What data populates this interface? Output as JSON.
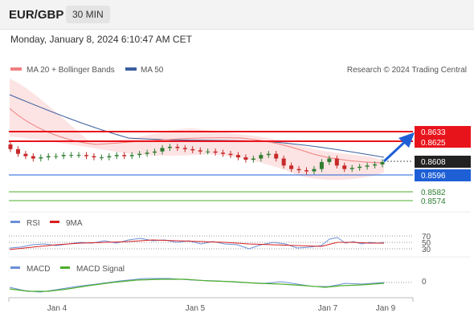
{
  "header": {
    "pair": "EUR/GBP",
    "timeframe": "30 MIN"
  },
  "datetime": "Monday, January 8, 2024 6:10:47 AM CET",
  "legend": {
    "ma20_bb": "MA 20 + Bollinger Bands",
    "ma50": "MA 50",
    "credit": "Research © 2024 Trading Central"
  },
  "colors": {
    "bullish": "#2e7d32",
    "bearish": "#c62828",
    "resistance": "#e8141c",
    "support_line": "#1e5fd6",
    "ma50": "#3b5f9e",
    "ma20": "#f08080",
    "bb_fill": "#fde4e4",
    "current": "#222222",
    "rsi": "#6b8fd6",
    "ma9": "#d62020",
    "macd": "#6b8fd6",
    "macd_signal": "#4caf2a"
  },
  "levels": [
    {
      "label": "0.8633",
      "style": "resistance-tag"
    },
    {
      "label": "0.8625",
      "style": "resistance-tag"
    },
    {
      "label": "0.8608",
      "style": "current-tag"
    },
    {
      "label": "0.8596",
      "style": "pivot-tag"
    },
    {
      "label": "0.8582",
      "style": "support-text"
    },
    {
      "label": "0.8574",
      "style": "support-text"
    }
  ],
  "rsi_panel": {
    "rsi_label": "RSI",
    "ma_label": "9MA",
    "levels": [
      "70",
      "50",
      "30"
    ]
  },
  "macd_panel": {
    "macd_label": "MACD",
    "signal_label": "MACD Signal",
    "zero_label": "0"
  },
  "x_axis": [
    "Jan 4",
    "Jan 5",
    "Jan 7",
    "Jan 9"
  ],
  "chart_data": {
    "type": "candlestick",
    "timeframe": "30 MIN",
    "price_levels": [
      0.8633,
      0.8625,
      0.8608,
      0.8596,
      0.8582,
      0.8574
    ],
    "candles_close_approx": [
      0.8618,
      0.8614,
      0.8612,
      0.861,
      0.8611,
      0.8612,
      0.8612,
      0.8613,
      0.8613,
      0.8613,
      0.8612,
      0.8611,
      0.8611,
      0.8612,
      0.8613,
      0.8612,
      0.8613,
      0.8614,
      0.8615,
      0.8616,
      0.8619,
      0.862,
      0.8619,
      0.8618,
      0.8617,
      0.8616,
      0.8616,
      0.8615,
      0.8614,
      0.8613,
      0.8611,
      0.8609,
      0.861,
      0.8613,
      0.8614,
      0.861,
      0.8604,
      0.8601,
      0.86,
      0.8599,
      0.8601,
      0.8607,
      0.861,
      0.8604,
      0.8601,
      0.8602,
      0.8603,
      0.8604,
      0.8605,
      0.8607
    ],
    "forecast_target": 0.8633
  }
}
